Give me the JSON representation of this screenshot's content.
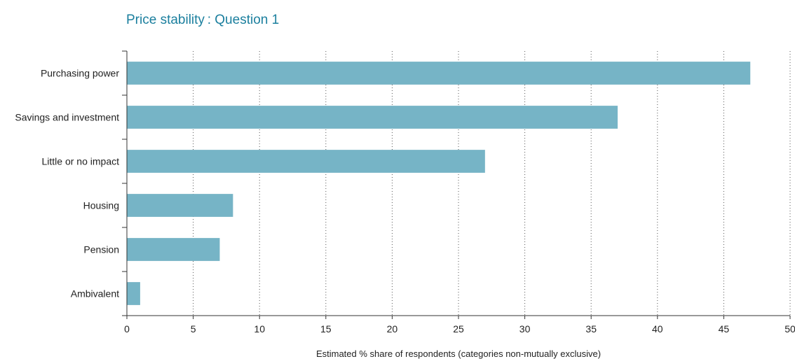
{
  "chart_data": {
    "type": "bar",
    "orientation": "horizontal",
    "title": "Price stability : Question 1",
    "categories": [
      "Purchasing power",
      "Savings and investment",
      "Little or no impact",
      "Housing",
      "Pension",
      "Ambivalent"
    ],
    "values": [
      47,
      37,
      27,
      8,
      7,
      1
    ],
    "xlabel": "Estimated % share of respondents (categories non-mutually exclusive)",
    "ylabel": "",
    "xlim": [
      0,
      50
    ],
    "x_ticks": [
      0,
      5,
      10,
      15,
      20,
      25,
      30,
      35,
      40,
      45,
      50
    ],
    "grid": "vertical dotted",
    "legend": "none",
    "bar_color": "#76b4c6",
    "title_color": "#1b7f9e"
  }
}
